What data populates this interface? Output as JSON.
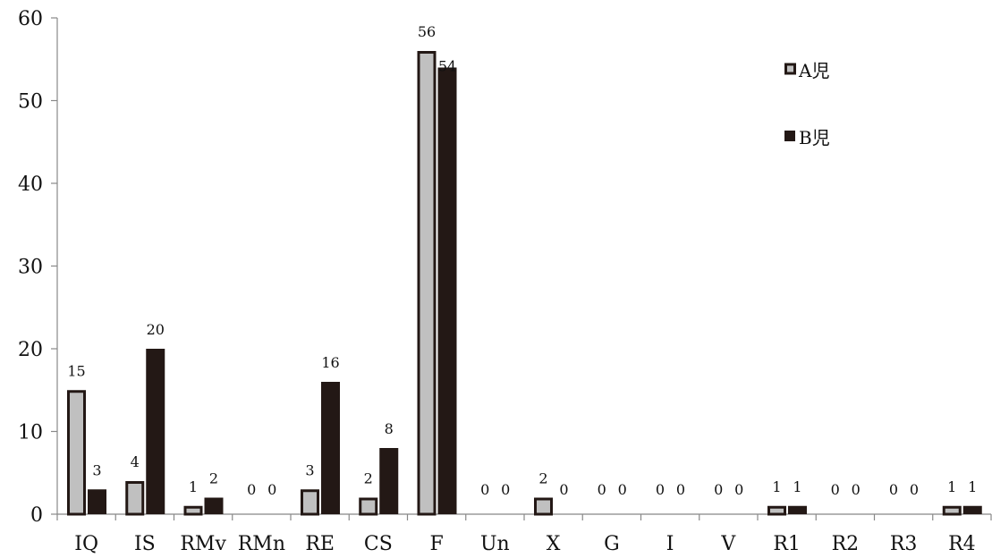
{
  "chart_data": {
    "type": "bar",
    "categories": [
      "IQ",
      "IS",
      "RMv",
      "RMn",
      "RE",
      "CS",
      "F",
      "Un",
      "X",
      "G",
      "I",
      "V",
      "R1",
      "R2",
      "R3",
      "R4"
    ],
    "series": [
      {
        "name": "A児",
        "values": [
          15,
          4,
          1,
          0,
          3,
          2,
          56,
          0,
          2,
          0,
          0,
          0,
          1,
          0,
          0,
          1
        ],
        "color": "#c0c0c0",
        "stroke": "#231815"
      },
      {
        "name": "B児",
        "values": [
          3,
          20,
          2,
          0,
          16,
          8,
          54,
          0,
          0,
          0,
          0,
          0,
          1,
          0,
          0,
          1
        ],
        "color": "#231815",
        "stroke": "#231815"
      }
    ],
    "ylim": [
      0,
      60
    ],
    "yticks": [
      0,
      10,
      20,
      30,
      40,
      50,
      60
    ],
    "legend_position": "top-right",
    "data_labels": true,
    "grid": false
  }
}
